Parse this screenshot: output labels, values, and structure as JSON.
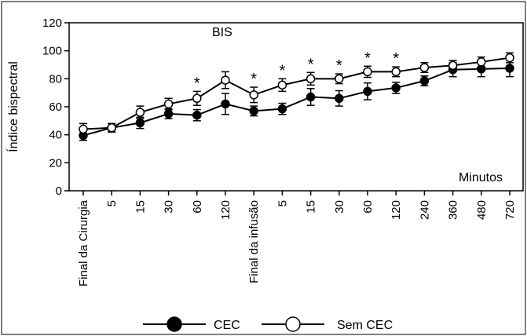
{
  "chart_data": {
    "type": "line",
    "title": "BIS",
    "ylabel": "Índice bispectral",
    "xlabel": "Minutos",
    "ylim": [
      0,
      120
    ],
    "yticks": [
      0,
      20,
      40,
      60,
      80,
      100,
      120
    ],
    "categories": [
      "Final da Cirurgia",
      "5",
      "15",
      "30",
      "60",
      "120",
      "Final da infusão",
      "5",
      "15",
      "30",
      "60",
      "120",
      "240",
      "360",
      "480",
      "720"
    ],
    "series": [
      {
        "name": "CEC",
        "marker": "filled-circle",
        "color": "#000000",
        "values": [
          39.5,
          45,
          48.5,
          55,
          54,
          62,
          57,
          58.5,
          67,
          66,
          71,
          73.5,
          78.5,
          86.5,
          87,
          87.5
        ],
        "error": [
          3.5,
          3,
          4,
          3.5,
          4,
          7.5,
          3.5,
          4,
          6,
          5.5,
          6,
          4,
          3.5,
          5,
          5.5,
          6
        ]
      },
      {
        "name": "Sem CEC",
        "marker": "open-circle",
        "color": "#000000",
        "values": [
          44,
          45,
          56,
          62,
          66,
          79,
          68.5,
          75.5,
          80,
          80,
          85,
          85,
          88,
          89.5,
          92,
          95
        ],
        "error": [
          4,
          3,
          4.5,
          4,
          5,
          6,
          5.5,
          4.5,
          4.5,
          3.5,
          4,
          3.5,
          3.5,
          3.5,
          3.5,
          3.5
        ]
      }
    ],
    "significance_marker": "*",
    "significance_indices": [
      4,
      6,
      7,
      8,
      9,
      10,
      11
    ],
    "legend_position": "bottom",
    "grid": false
  }
}
